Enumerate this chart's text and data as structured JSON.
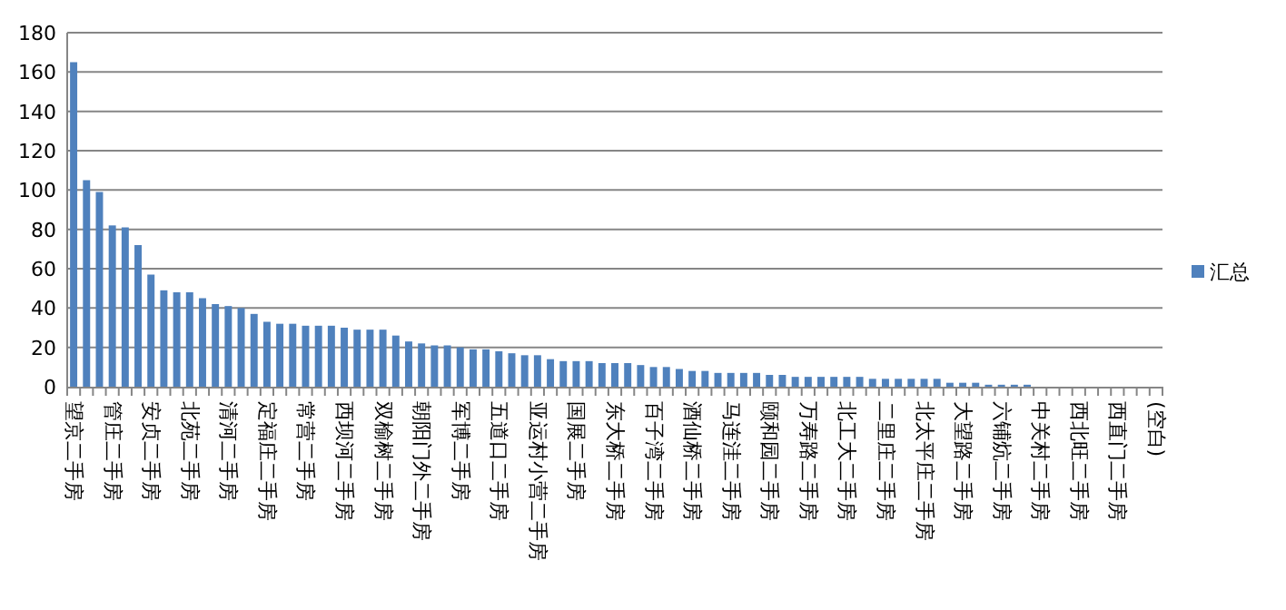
{
  "chart_data": {
    "type": "bar",
    "categories": [
      "望京二手房",
      null,
      null,
      "管庄二手房",
      null,
      null,
      "安贞二手房",
      null,
      null,
      "北苑二手房",
      null,
      null,
      "清河二手房",
      null,
      null,
      "定福庄二手房",
      null,
      null,
      "常营二手房",
      null,
      null,
      "西坝河二手房",
      null,
      null,
      "双榆树二手房",
      null,
      null,
      "朝阳门外二手房",
      null,
      null,
      "军博二手房",
      null,
      null,
      "五道口二手房",
      null,
      null,
      "亚运村小营二手房",
      null,
      null,
      "国展二手房",
      null,
      null,
      "东大桥二手房",
      null,
      null,
      "百子湾二手房",
      null,
      null,
      "酒仙桥二手房",
      null,
      null,
      "马连洼二手房",
      null,
      null,
      "颐和园二手房",
      null,
      null,
      "万寿路二手房",
      null,
      null,
      "北工大二手房",
      null,
      null,
      "二里庄二手房",
      null,
      null,
      "北太平庄二手房",
      null,
      null,
      "大望路二手房",
      null,
      null,
      "六铺炕二手房",
      null,
      null,
      "中关村二手房",
      null,
      null,
      "西北旺二手房",
      null,
      null,
      "西直门二手房",
      null,
      null,
      "(空白)"
    ],
    "series": [
      {
        "name": "汇总",
        "color": "#4f81bd",
        "values": [
          165,
          105,
          99,
          82,
          81,
          72,
          57,
          49,
          48,
          48,
          45,
          42,
          41,
          40,
          37,
          33,
          32,
          32,
          31,
          31,
          31,
          30,
          29,
          29,
          29,
          26,
          23,
          22,
          21,
          21,
          20,
          19,
          19,
          18,
          17,
          16,
          16,
          14,
          13,
          13,
          13,
          12,
          12,
          12,
          11,
          10,
          10,
          9,
          8,
          8,
          7,
          7,
          7,
          7,
          6,
          6,
          5,
          5,
          5,
          5,
          5,
          5,
          4,
          4,
          4,
          4,
          4,
          4,
          2,
          2,
          2,
          1,
          1,
          1,
          1,
          0,
          0,
          0,
          0,
          0,
          0,
          0,
          0,
          0,
          0
        ]
      }
    ],
    "ylim": [
      0,
      180
    ],
    "yticks": [
      0,
      20,
      40,
      60,
      80,
      100,
      120,
      140,
      160,
      180
    ],
    "grid": "y",
    "legend": "right"
  }
}
